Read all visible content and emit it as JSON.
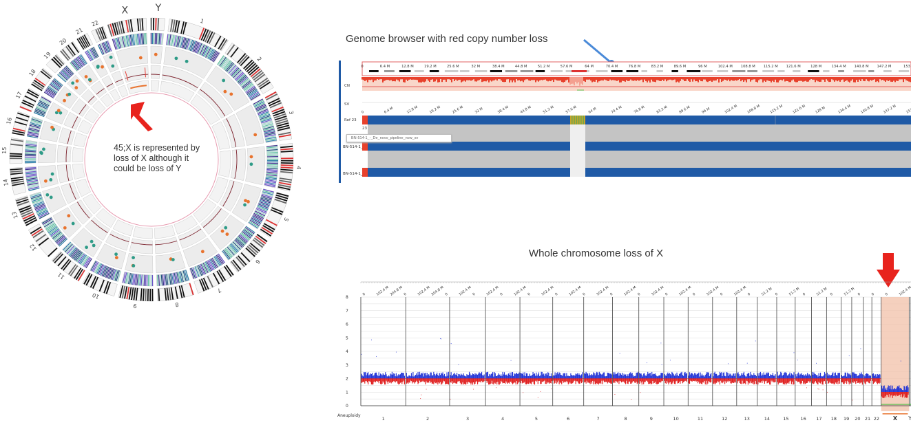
{
  "circos": {
    "chrom_labels": [
      "X",
      "Y",
      "1",
      "2",
      "3",
      "4",
      "5",
      "6",
      "7",
      "8",
      "9",
      "10",
      "11",
      "12",
      "13",
      "14",
      "15",
      "16",
      "17",
      "18",
      "19",
      "20",
      "21",
      "22"
    ],
    "note": "45;X is represented by loss of X although it could be loss of Y",
    "colors": {
      "accent": "#e8413a",
      "dot_teal": "#2e9b87",
      "dot_orange": "#e8732e",
      "dot_purple": "#8a7fd6"
    }
  },
  "genome_browser": {
    "caption": "Genome browser with red copy number loss",
    "ruler_ticks": [
      "0",
      "6.4 M",
      "12.8 M",
      "19.2 M",
      "25.6 M",
      "32 M",
      "38.4 M",
      "44.8 M",
      "51.2 M",
      "57.6 M",
      "64 M",
      "70.4 M",
      "76.8 M",
      "83.2 M",
      "89.6 M",
      "96 M",
      "102.4 M",
      "108.8 M",
      "115.2 M",
      "121.6 M",
      "128 M",
      "134.4 M",
      "140.8 M",
      "147.2 M",
      "153"
    ],
    "tracks": {
      "cn": "CN",
      "sv": "SV",
      "ref": "Ref 23",
      "ref_num": "23",
      "sample1": "BN-514-1_",
      "sample2": "BN-514-1_"
    },
    "tooltip": "BN-514-1_-_De_novo_pipeline_now_sv",
    "colors": {
      "loss_red": "#e8412c",
      "track_blue": "#1f5aa6",
      "gray": "#c4c4c4"
    }
  },
  "whole_chromosome": {
    "caption": "Whole chromosome loss of X",
    "y_ticks": [
      "0",
      "1",
      "2",
      "3",
      "4",
      "5",
      "6",
      "7",
      "8"
    ],
    "y_label": "Aneuploidy",
    "top_ticks": [
      "0",
      "102.4 M",
      "204.8 M",
      "0",
      "102.4 M",
      "204.8 M",
      "0",
      "102.4 M",
      "0",
      "102.4 M",
      "0",
      "102.4 M",
      "0",
      "102.4 M",
      "0",
      "102.4 M",
      "0",
      "102.4 M",
      "0",
      "102.4 M",
      "0",
      "102.4 M",
      "0",
      "102.4 M",
      "0",
      "102.4 M",
      "0",
      "102.4 M",
      "0",
      "51.2 M",
      "0",
      "51.2 M",
      "0",
      "51.2 M",
      "0",
      "51.2 M",
      "0",
      "0",
      "0",
      "102.4 M"
    ],
    "chromosomes": [
      "1",
      "2",
      "3",
      "4",
      "5",
      "6",
      "7",
      "8",
      "9",
      "10",
      "11",
      "12",
      "13",
      "14",
      "15",
      "16",
      "17",
      "18",
      "19",
      "20",
      "21",
      "22",
      "X",
      "Y"
    ],
    "chart_data": {
      "type": "scatter",
      "categories": [
        "1",
        "2",
        "3",
        "4",
        "5",
        "6",
        "7",
        "8",
        "9",
        "10",
        "11",
        "12",
        "13",
        "14",
        "15",
        "16",
        "17",
        "18",
        "19",
        "20",
        "21",
        "22",
        "X",
        "Y"
      ],
      "series": [
        {
          "values": [
            2,
            2,
            2,
            2,
            2,
            2,
            2,
            2,
            2,
            2,
            2,
            2,
            2,
            2,
            2,
            2,
            2,
            2,
            2,
            2,
            2,
            2,
            1,
            null
          ]
        }
      ],
      "ylim": [
        0,
        8
      ],
      "ylabel": "Aneuploidy",
      "colors": {
        "gain_blue": "#2436d6",
        "loss_red": "#e02222",
        "highlight": "#f2c0a8"
      }
    }
  }
}
